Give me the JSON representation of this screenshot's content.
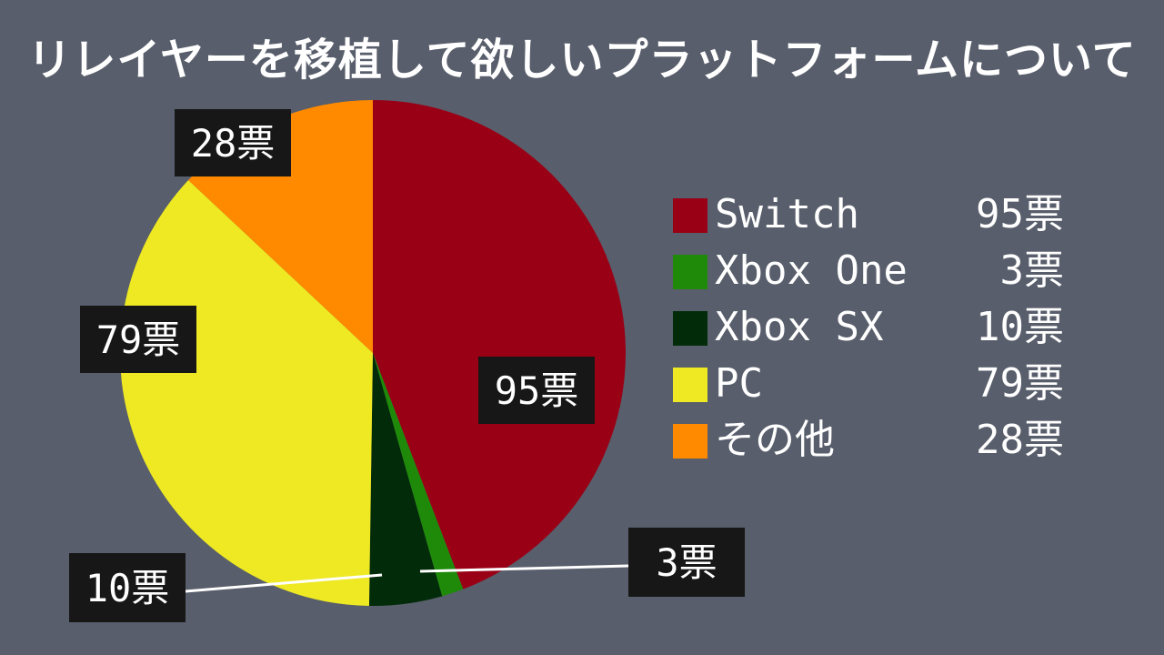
{
  "title": "リレイヤーを移植して欲しいプラットフォームについて",
  "colors": {
    "background": "#585e6b",
    "label_box": "#171717",
    "leader_line": "#ffffff"
  },
  "chart_data": {
    "type": "pie",
    "title": "リレイヤーを移植して欲しいプラットフォームについて",
    "unit": "票",
    "slices": [
      {
        "name": "Switch",
        "value": 95,
        "label": "95票",
        "color": "#9a0015"
      },
      {
        "name": "Xbox One",
        "value": 3,
        "label": "3票",
        "color": "#1f8a0a"
      },
      {
        "name": "Xbox SX",
        "value": 10,
        "label": "10票",
        "color": "#022b09"
      },
      {
        "name": "PC",
        "value": 79,
        "label": "79票",
        "color": "#eee923"
      },
      {
        "name": "その他",
        "value": 28,
        "label": "28票",
        "color": "#ff8a00"
      }
    ],
    "legend_position": "right"
  },
  "legend": [
    {
      "name": "Switch",
      "value": "95票"
    },
    {
      "name": "Xbox One",
      "value": "3票"
    },
    {
      "name": "Xbox SX",
      "value": "10票"
    },
    {
      "name": "PC",
      "value": "79票"
    },
    {
      "name": "その他",
      "value": "28票"
    }
  ]
}
